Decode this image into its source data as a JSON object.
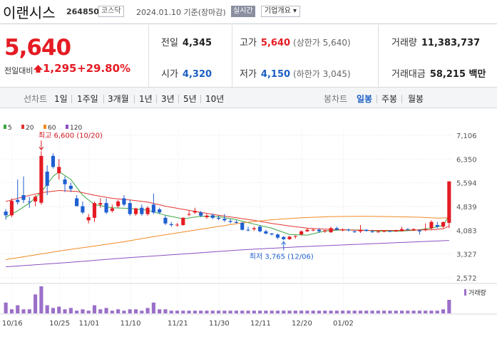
{
  "header": {
    "name": "이랜시스",
    "code": "264850",
    "market": "코스닥",
    "date": "2024.01.10",
    "basis": "기준(장마감)",
    "realtime_button": "실시간",
    "company_info_button": "기업개요 ▾"
  },
  "price": {
    "current": "5,640",
    "change_label": "전일대비",
    "change": "1,295",
    "change_pct": "+29.80%"
  },
  "stats": {
    "prev_label": "전일",
    "prev": "4,345",
    "high_label": "고가",
    "high": "5,640",
    "high_note": "(상한가 5,640)",
    "volume_label": "거래량",
    "volume": "11,383,737",
    "open_label": "시가",
    "open": "4,320",
    "low_label": "저가",
    "low": "4,150",
    "low_note": "(하한가 3,045)",
    "amount_label": "거래대금",
    "amount": "58,215 백만"
  },
  "tabs": {
    "line_label": "선차트",
    "line_periods": [
      "1일",
      "1주일",
      "3개월",
      "1년",
      "3년",
      "5년",
      "10년"
    ],
    "candle_label": "봉차트",
    "candle_periods": [
      "일봉",
      "주봉",
      "월봉"
    ],
    "candle_active": "일봉"
  },
  "chart_data": {
    "type": "candlestick",
    "ma_legend": [
      {
        "name": "5",
        "color": "#3aa640"
      },
      {
        "name": "20",
        "color": "#e3342f"
      },
      {
        "name": "60",
        "color": "#f08a24"
      },
      {
        "name": "120",
        "color": "#8c4fc2"
      }
    ],
    "y_ticks": [
      "7,106",
      "6,350",
      "5,594",
      "4,839",
      "4,083",
      "3,327",
      "2,572"
    ],
    "ylim": [
      2572,
      7106
    ],
    "x_ticks": [
      "10/16",
      "10/25",
      "11/01",
      "11/10",
      "11/21",
      "11/30",
      "12/11",
      "12/20",
      "01/02"
    ],
    "annotations": {
      "high": "최고 6,600 (10/20)",
      "low": "최저 3,765 (12/06)"
    },
    "volume_label": "거래량",
    "candles": [
      {
        "o": 4680,
        "h": 4760,
        "l": 4420,
        "c": 4560
      },
      {
        "o": 4560,
        "h": 5100,
        "l": 4500,
        "c": 5020
      },
      {
        "o": 5050,
        "h": 5700,
        "l": 4900,
        "c": 4980
      },
      {
        "o": 5200,
        "h": 5800,
        "l": 4950,
        "c": 5050
      },
      {
        "o": 5000,
        "h": 5150,
        "l": 4800,
        "c": 4980
      },
      {
        "o": 5000,
        "h": 5200,
        "l": 4850,
        "c": 5150
      },
      {
        "o": 4960,
        "h": 6600,
        "l": 4900,
        "c": 6450
      },
      {
        "o": 5950,
        "h": 6150,
        "l": 5200,
        "c": 5500
      },
      {
        "o": 6450,
        "h": 6530,
        "l": 6050,
        "c": 6100
      },
      {
        "o": 5900,
        "h": 6350,
        "l": 5700,
        "c": 6100
      },
      {
        "o": 5700,
        "h": 5800,
        "l": 5300,
        "c": 5550
      },
      {
        "o": 5500,
        "h": 5600,
        "l": 5300,
        "c": 5400
      },
      {
        "o": 5100,
        "h": 5200,
        "l": 4850,
        "c": 4850
      },
      {
        "o": 4850,
        "h": 5000,
        "l": 4600,
        "c": 4650
      },
      {
        "o": 4400,
        "h": 4600,
        "l": 4300,
        "c": 4500
      },
      {
        "o": 4480,
        "h": 5000,
        "l": 4350,
        "c": 4950
      },
      {
        "o": 4900,
        "h": 5100,
        "l": 4800,
        "c": 4950
      },
      {
        "o": 4950,
        "h": 5100,
        "l": 4600,
        "c": 4650
      },
      {
        "o": 4700,
        "h": 4900,
        "l": 4650,
        "c": 4780
      },
      {
        "o": 4850,
        "h": 5050,
        "l": 4800,
        "c": 5000
      },
      {
        "o": 5100,
        "h": 5200,
        "l": 4850,
        "c": 4900
      },
      {
        "o": 4950,
        "h": 5050,
        "l": 4550,
        "c": 4600
      },
      {
        "o": 4600,
        "h": 4800,
        "l": 4550,
        "c": 4780
      },
      {
        "o": 4800,
        "h": 4900,
        "l": 4550,
        "c": 4600
      },
      {
        "o": 4600,
        "h": 4850,
        "l": 4550,
        "c": 4800
      },
      {
        "o": 4900,
        "h": 5250,
        "l": 4600,
        "c": 4650
      },
      {
        "o": 4750,
        "h": 4800,
        "l": 4600,
        "c": 4650
      },
      {
        "o": 4480,
        "h": 4550,
        "l": 4250,
        "c": 4300
      },
      {
        "o": 4280,
        "h": 4350,
        "l": 4200,
        "c": 4250
      },
      {
        "o": 4250,
        "h": 4320,
        "l": 4200,
        "c": 4260
      },
      {
        "o": 4250,
        "h": 4500,
        "l": 4230,
        "c": 4480
      },
      {
        "o": 4600,
        "h": 4700,
        "l": 4530,
        "c": 4600
      },
      {
        "o": 4650,
        "h": 4800,
        "l": 4600,
        "c": 4700
      },
      {
        "o": 4650,
        "h": 4700,
        "l": 4500,
        "c": 4550
      },
      {
        "o": 4500,
        "h": 4600,
        "l": 4450,
        "c": 4550
      },
      {
        "o": 4560,
        "h": 4620,
        "l": 4440,
        "c": 4480
      },
      {
        "o": 4480,
        "h": 4550,
        "l": 4400,
        "c": 4450
      },
      {
        "o": 4450,
        "h": 4600,
        "l": 4350,
        "c": 4400
      },
      {
        "o": 4380,
        "h": 4450,
        "l": 4300,
        "c": 4350
      },
      {
        "o": 4350,
        "h": 4400,
        "l": 4300,
        "c": 4320
      },
      {
        "o": 4320,
        "h": 4350,
        "l": 4080,
        "c": 4100
      },
      {
        "o": 4100,
        "h": 4200,
        "l": 4050,
        "c": 4080
      },
      {
        "o": 4120,
        "h": 4200,
        "l": 4060,
        "c": 4150
      },
      {
        "o": 4200,
        "h": 4250,
        "l": 4020,
        "c": 4050
      },
      {
        "o": 4050,
        "h": 4100,
        "l": 3950,
        "c": 3980
      },
      {
        "o": 3980,
        "h": 4000,
        "l": 3920,
        "c": 3950
      },
      {
        "o": 3950,
        "h": 3980,
        "l": 3800,
        "c": 3850
      },
      {
        "o": 3870,
        "h": 3900,
        "l": 3765,
        "c": 3800
      },
      {
        "o": 3800,
        "h": 3900,
        "l": 3780,
        "c": 3880
      },
      {
        "o": 3880,
        "h": 3920,
        "l": 3820,
        "c": 3900
      },
      {
        "o": 3950,
        "h": 4080,
        "l": 3920,
        "c": 4050
      },
      {
        "o": 4050,
        "h": 4150,
        "l": 4030,
        "c": 4100
      },
      {
        "o": 4080,
        "h": 4150,
        "l": 4050,
        "c": 4100
      },
      {
        "o": 4100,
        "h": 4150,
        "l": 4000,
        "c": 4050
      },
      {
        "o": 4050,
        "h": 4100,
        "l": 4000,
        "c": 4080
      },
      {
        "o": 4020,
        "h": 4200,
        "l": 4000,
        "c": 4150
      },
      {
        "o": 4150,
        "h": 4200,
        "l": 4080,
        "c": 4100
      },
      {
        "o": 4080,
        "h": 4150,
        "l": 4050,
        "c": 4100
      },
      {
        "o": 4100,
        "h": 4140,
        "l": 4050,
        "c": 4080
      },
      {
        "o": 4050,
        "h": 4080,
        "l": 4000,
        "c": 4030
      },
      {
        "o": 4050,
        "h": 4250,
        "l": 4000,
        "c": 4100
      },
      {
        "o": 4100,
        "h": 4120,
        "l": 4050,
        "c": 4060
      },
      {
        "o": 4050,
        "h": 4100,
        "l": 4000,
        "c": 4030
      },
      {
        "o": 4030,
        "h": 4070,
        "l": 4010,
        "c": 4040
      },
      {
        "o": 4040,
        "h": 4080,
        "l": 4020,
        "c": 4060
      },
      {
        "o": 4060,
        "h": 4080,
        "l": 4020,
        "c": 4050
      },
      {
        "o": 4050,
        "h": 4100,
        "l": 4030,
        "c": 4080
      },
      {
        "o": 4060,
        "h": 4200,
        "l": 4040,
        "c": 4120
      },
      {
        "o": 4120,
        "h": 4150,
        "l": 4080,
        "c": 4100
      },
      {
        "o": 4080,
        "h": 4150,
        "l": 4060,
        "c": 4120
      },
      {
        "o": 4080,
        "h": 4100,
        "l": 3950,
        "c": 4050
      },
      {
        "o": 4100,
        "h": 4300,
        "l": 4050,
        "c": 4120
      },
      {
        "o": 4150,
        "h": 4400,
        "l": 4100,
        "c": 4350
      },
      {
        "o": 4250,
        "h": 4350,
        "l": 4150,
        "c": 4200
      },
      {
        "o": 4200,
        "h": 4360,
        "l": 4150,
        "c": 4345
      },
      {
        "o": 4320,
        "h": 5640,
        "l": 4150,
        "c": 5640
      }
    ],
    "ma": {
      "5": [
        [
          0,
          4500
        ],
        [
          2,
          4700
        ],
        [
          4,
          4950
        ],
        [
          6,
          5300
        ],
        [
          8,
          5800
        ],
        [
          9,
          5950
        ],
        [
          11,
          5700
        ],
        [
          13,
          5200
        ],
        [
          15,
          4900
        ],
        [
          18,
          4800
        ],
        [
          21,
          4780
        ],
        [
          24,
          4720
        ],
        [
          27,
          4560
        ],
        [
          30,
          4450
        ],
        [
          33,
          4530
        ],
        [
          36,
          4520
        ],
        [
          39,
          4420
        ],
        [
          42,
          4280
        ],
        [
          45,
          4150
        ],
        [
          48,
          3950
        ],
        [
          51,
          3930
        ],
        [
          54,
          4060
        ],
        [
          57,
          4100
        ],
        [
          60,
          4090
        ],
        [
          63,
          4060
        ],
        [
          66,
          4050
        ],
        [
          69,
          4080
        ],
        [
          72,
          4150
        ],
        [
          74,
          4240
        ],
        [
          75,
          4560
        ]
      ],
      "20": [
        [
          0,
          5000
        ],
        [
          3,
          5150
        ],
        [
          6,
          5280
        ],
        [
          9,
          5350
        ],
        [
          12,
          5320
        ],
        [
          15,
          5200
        ],
        [
          18,
          5100
        ],
        [
          21,
          5050
        ],
        [
          24,
          4980
        ],
        [
          27,
          4850
        ],
        [
          30,
          4750
        ],
        [
          33,
          4650
        ],
        [
          36,
          4560
        ],
        [
          39,
          4480
        ],
        [
          42,
          4400
        ],
        [
          45,
          4300
        ],
        [
          48,
          4220
        ],
        [
          51,
          4150
        ],
        [
          54,
          4120
        ],
        [
          57,
          4100
        ],
        [
          60,
          4080
        ],
        [
          63,
          4080
        ],
        [
          66,
          4080
        ],
        [
          69,
          4090
        ],
        [
          72,
          4100
        ],
        [
          74,
          4130
        ],
        [
          75,
          4220
        ]
      ],
      "60": [
        [
          0,
          3150
        ],
        [
          5,
          3300
        ],
        [
          10,
          3450
        ],
        [
          15,
          3580
        ],
        [
          20,
          3720
        ],
        [
          25,
          3880
        ],
        [
          30,
          4030
        ],
        [
          35,
          4180
        ],
        [
          40,
          4320
        ],
        [
          45,
          4420
        ],
        [
          50,
          4480
        ],
        [
          55,
          4520
        ],
        [
          60,
          4530
        ],
        [
          65,
          4520
        ],
        [
          70,
          4500
        ],
        [
          73,
          4470
        ],
        [
          75,
          4480
        ]
      ],
      "120": [
        [
          0,
          2920
        ],
        [
          10,
          3050
        ],
        [
          20,
          3200
        ],
        [
          30,
          3330
        ],
        [
          40,
          3460
        ],
        [
          50,
          3560
        ],
        [
          60,
          3640
        ],
        [
          70,
          3720
        ],
        [
          75,
          3760
        ]
      ]
    },
    "volume": [
      8,
      3,
      6,
      3,
      3,
      14,
      20,
      6,
      4,
      5,
      3,
      4,
      2,
      3,
      2,
      6,
      3,
      4,
      2,
      3,
      2,
      3,
      3,
      2,
      4,
      8,
      3,
      3,
      2,
      2,
      2,
      2,
      2,
      2,
      2,
      2,
      2,
      2,
      2,
      2,
      2,
      2,
      2,
      2,
      2,
      2,
      2,
      2,
      2,
      2,
      2,
      2,
      2,
      2,
      2,
      2,
      2,
      2,
      2,
      2,
      2,
      2,
      2,
      2,
      2,
      2,
      2,
      2,
      2,
      2,
      2,
      2,
      2,
      2,
      3,
      10
    ]
  }
}
